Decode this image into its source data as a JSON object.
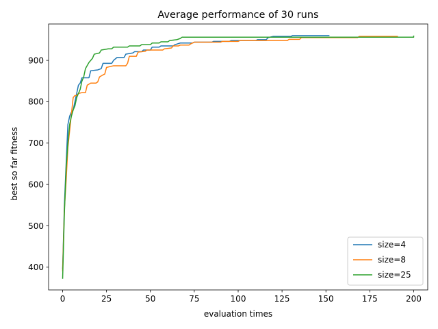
{
  "chart_data": {
    "type": "line",
    "title": "Average performance of 30 runs",
    "xlabel": "evaluation times",
    "ylabel": "best so far fitness",
    "xlim": [
      -8,
      208
    ],
    "ylim": [
      345,
      988
    ],
    "xticks": [
      0,
      25,
      50,
      75,
      100,
      125,
      150,
      175,
      200
    ],
    "yticks": [
      400,
      500,
      600,
      700,
      800,
      900
    ],
    "grid": false,
    "legend_position": "lower-right",
    "series": [
      {
        "name": "size=4",
        "color": "#1f77b4",
        "points": [
          [
            0,
            395
          ],
          [
            1,
            550
          ],
          [
            2,
            650
          ],
          [
            3,
            745
          ],
          [
            4,
            765
          ],
          [
            5,
            775
          ],
          [
            6,
            780
          ],
          [
            7,
            800
          ],
          [
            8,
            820
          ],
          [
            9,
            840
          ],
          [
            10,
            845
          ],
          [
            11,
            858
          ],
          [
            12,
            858
          ],
          [
            15,
            858
          ],
          [
            16,
            875
          ],
          [
            20,
            877
          ],
          [
            22,
            880
          ],
          [
            23,
            893
          ],
          [
            28,
            893
          ],
          [
            29,
            900
          ],
          [
            31,
            907
          ],
          [
            35,
            907
          ],
          [
            36,
            915
          ],
          [
            40,
            918
          ],
          [
            41,
            921
          ],
          [
            45,
            921
          ],
          [
            46,
            925
          ],
          [
            50,
            925
          ],
          [
            51,
            932
          ],
          [
            55,
            932
          ],
          [
            56,
            935
          ],
          [
            63,
            935
          ],
          [
            64,
            938
          ],
          [
            67,
            942
          ],
          [
            74,
            942
          ],
          [
            75,
            944
          ],
          [
            85,
            944
          ],
          [
            86,
            946
          ],
          [
            95,
            946
          ],
          [
            96,
            948
          ],
          [
            110,
            948
          ],
          [
            111,
            950
          ],
          [
            116,
            950
          ],
          [
            117,
            955
          ],
          [
            120,
            958
          ],
          [
            130,
            958
          ],
          [
            131,
            960
          ],
          [
            152,
            960
          ]
        ]
      },
      {
        "name": "size=8",
        "color": "#ff7f0e",
        "points": [
          [
            0,
            390
          ],
          [
            1,
            540
          ],
          [
            2,
            610
          ],
          [
            3,
            690
          ],
          [
            4,
            730
          ],
          [
            5,
            770
          ],
          [
            6,
            810
          ],
          [
            7,
            815
          ],
          [
            8,
            815
          ],
          [
            9,
            820
          ],
          [
            11,
            822
          ],
          [
            13,
            822
          ],
          [
            14,
            840
          ],
          [
            16,
            845
          ],
          [
            19,
            845
          ],
          [
            20,
            848
          ],
          [
            21,
            860
          ],
          [
            23,
            865
          ],
          [
            24,
            867
          ],
          [
            25,
            883
          ],
          [
            27,
            885
          ],
          [
            29,
            887
          ],
          [
            36,
            887
          ],
          [
            37,
            893
          ],
          [
            38,
            910
          ],
          [
            42,
            910
          ],
          [
            43,
            920
          ],
          [
            47,
            922
          ],
          [
            48,
            925
          ],
          [
            57,
            925
          ],
          [
            58,
            928
          ],
          [
            62,
            930
          ],
          [
            63,
            935
          ],
          [
            66,
            935
          ],
          [
            67,
            937
          ],
          [
            72,
            937
          ],
          [
            73,
            940
          ],
          [
            75,
            944
          ],
          [
            90,
            944
          ],
          [
            91,
            946
          ],
          [
            100,
            946
          ],
          [
            101,
            948
          ],
          [
            128,
            948
          ],
          [
            129,
            951
          ],
          [
            135,
            951
          ],
          [
            136,
            955
          ],
          [
            168,
            955
          ],
          [
            169,
            958
          ],
          [
            191,
            958
          ]
        ]
      },
      {
        "name": "size=25",
        "color": "#2ca02c",
        "points": [
          [
            0,
            372
          ],
          [
            1,
            530
          ],
          [
            2,
            640
          ],
          [
            3,
            700
          ],
          [
            4,
            745
          ],
          [
            5,
            765
          ],
          [
            6,
            780
          ],
          [
            7,
            790
          ],
          [
            8,
            810
          ],
          [
            9,
            820
          ],
          [
            10,
            830
          ],
          [
            11,
            850
          ],
          [
            12,
            860
          ],
          [
            13,
            880
          ],
          [
            15,
            895
          ],
          [
            17,
            905
          ],
          [
            18,
            915
          ],
          [
            21,
            918
          ],
          [
            22,
            925
          ],
          [
            26,
            928
          ],
          [
            28,
            928
          ],
          [
            29,
            932
          ],
          [
            37,
            932
          ],
          [
            38,
            935
          ],
          [
            44,
            935
          ],
          [
            45,
            938
          ],
          [
            50,
            938
          ],
          [
            51,
            942
          ],
          [
            55,
            942
          ],
          [
            56,
            945
          ],
          [
            60,
            945
          ],
          [
            61,
            948
          ],
          [
            65,
            950
          ],
          [
            67,
            953
          ],
          [
            68,
            956
          ],
          [
            200,
            956
          ],
          [
            200,
            960
          ]
        ]
      }
    ]
  }
}
